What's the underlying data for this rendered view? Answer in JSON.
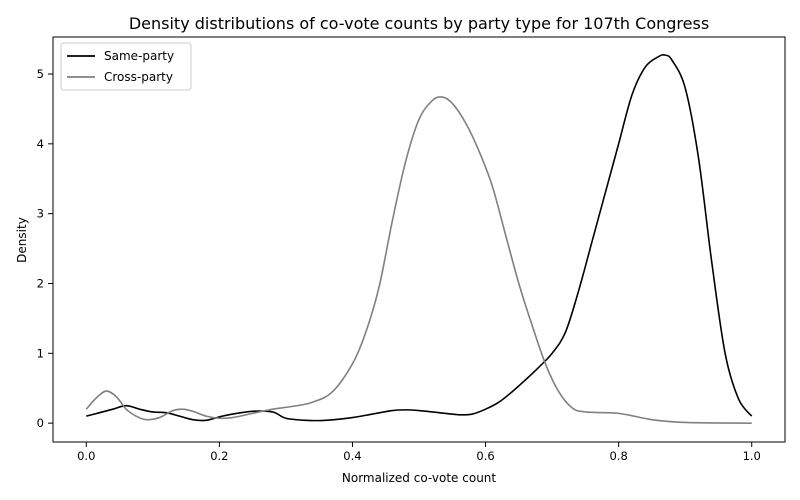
{
  "chart_data": {
    "type": "line",
    "title": "Density distributions of co-vote counts by party type for 107th Congress",
    "xlabel": "Normalized co-vote count",
    "ylabel": "Density",
    "xlim": [
      -0.05,
      1.05
    ],
    "ylim": [
      -0.27,
      5.53
    ],
    "xticks": [
      0.0,
      0.2,
      0.4,
      0.6,
      0.8,
      1.0
    ],
    "xtick_labels": [
      "0.0",
      "0.2",
      "0.4",
      "0.6",
      "0.8",
      "1.0"
    ],
    "yticks": [
      0,
      1,
      2,
      3,
      4,
      5
    ],
    "ytick_labels": [
      "0",
      "1",
      "2",
      "3",
      "4",
      "5"
    ],
    "grid": false,
    "legend": "top-left",
    "series": [
      {
        "name": "Same-party",
        "color": "#000000",
        "x": [
          0.0,
          0.02,
          0.04,
          0.06,
          0.08,
          0.1,
          0.12,
          0.14,
          0.16,
          0.18,
          0.2,
          0.22,
          0.25,
          0.28,
          0.3,
          0.33,
          0.36,
          0.4,
          0.43,
          0.46,
          0.48,
          0.5,
          0.53,
          0.56,
          0.58,
          0.6,
          0.62,
          0.64,
          0.66,
          0.68,
          0.7,
          0.72,
          0.74,
          0.76,
          0.78,
          0.8,
          0.82,
          0.84,
          0.86,
          0.87,
          0.88,
          0.9,
          0.92,
          0.94,
          0.96,
          0.98,
          1.0
        ],
        "values": [
          0.1,
          0.15,
          0.2,
          0.25,
          0.2,
          0.16,
          0.15,
          0.1,
          0.05,
          0.04,
          0.09,
          0.13,
          0.17,
          0.16,
          0.07,
          0.04,
          0.04,
          0.08,
          0.13,
          0.18,
          0.19,
          0.18,
          0.15,
          0.12,
          0.13,
          0.2,
          0.3,
          0.45,
          0.62,
          0.8,
          1.0,
          1.3,
          1.9,
          2.6,
          3.3,
          4.0,
          4.7,
          5.1,
          5.25,
          5.27,
          5.2,
          4.8,
          3.8,
          2.3,
          1.0,
          0.35,
          0.1
        ]
      },
      {
        "name": "Cross-party",
        "color": "#808080",
        "x": [
          0.0,
          0.015,
          0.03,
          0.045,
          0.06,
          0.075,
          0.09,
          0.11,
          0.13,
          0.145,
          0.16,
          0.18,
          0.2,
          0.22,
          0.25,
          0.28,
          0.31,
          0.34,
          0.37,
          0.4,
          0.42,
          0.44,
          0.46,
          0.48,
          0.5,
          0.52,
          0.535,
          0.55,
          0.57,
          0.59,
          0.61,
          0.63,
          0.65,
          0.67,
          0.69,
          0.71,
          0.73,
          0.75,
          0.8,
          0.85,
          0.9,
          1.0
        ],
        "values": [
          0.2,
          0.36,
          0.46,
          0.38,
          0.2,
          0.1,
          0.05,
          0.08,
          0.18,
          0.2,
          0.17,
          0.1,
          0.07,
          0.08,
          0.14,
          0.2,
          0.24,
          0.3,
          0.45,
          0.85,
          1.3,
          1.95,
          2.9,
          3.75,
          4.35,
          4.62,
          4.67,
          4.58,
          4.3,
          3.9,
          3.4,
          2.7,
          2.0,
          1.4,
          0.85,
          0.45,
          0.22,
          0.16,
          0.14,
          0.05,
          0.01,
          0.0
        ]
      }
    ]
  }
}
